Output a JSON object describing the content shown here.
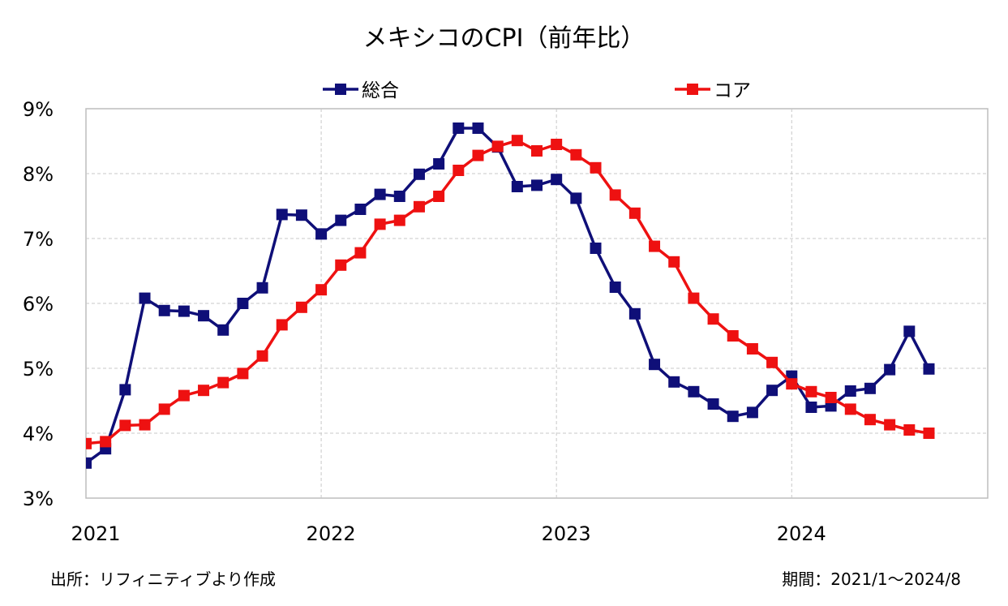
{
  "chart_data": {
    "type": "line",
    "title": "メキシコのCPI（前年比）",
    "x_tick_labels": [
      "2021",
      "2022",
      "2023",
      "2024"
    ],
    "y_tick_labels": [
      "3%",
      "4%",
      "5%",
      "6%",
      "7%",
      "8%",
      "9%"
    ],
    "ylim": [
      3,
      9
    ],
    "y_unit": "%",
    "x_range_months": [
      0,
      46
    ],
    "grid": true,
    "legend_position": "top",
    "series": [
      {
        "name": "総合",
        "color": "#0f0f78",
        "start_month": 0,
        "values": [
          3.54,
          3.76,
          4.67,
          6.08,
          5.89,
          5.88,
          5.81,
          5.59,
          6.0,
          6.24,
          7.37,
          7.36,
          7.07,
          7.28,
          7.45,
          7.68,
          7.65,
          7.99,
          8.15,
          8.7,
          8.7,
          8.41,
          7.8,
          7.82,
          7.91,
          7.62,
          6.85,
          6.25,
          5.84,
          5.06,
          4.79,
          4.64,
          4.45,
          4.26,
          4.32,
          4.66,
          4.88,
          4.4,
          4.42,
          4.65,
          4.69,
          4.98,
          5.57,
          4.99
        ]
      },
      {
        "name": "コア",
        "color": "#ee1111",
        "start_month": 0,
        "values": [
          3.84,
          3.87,
          4.12,
          4.13,
          4.37,
          4.58,
          4.66,
          4.78,
          4.92,
          5.19,
          5.67,
          5.94,
          6.21,
          6.59,
          6.78,
          7.22,
          7.28,
          7.49,
          7.65,
          8.05,
          8.28,
          8.42,
          8.51,
          8.35,
          8.45,
          8.29,
          8.09,
          7.67,
          7.39,
          6.88,
          6.64,
          6.08,
          5.76,
          5.5,
          5.3,
          5.09,
          4.76,
          4.64,
          4.55,
          4.37,
          4.21,
          4.13,
          4.05,
          4.0
        ]
      }
    ],
    "colors": {
      "grid": "#c8c8c8",
      "frame": "#bdbdbd"
    }
  },
  "footer": {
    "source": "出所：リフィニティブより作成",
    "period": "期間：2021/1～2024/8"
  }
}
